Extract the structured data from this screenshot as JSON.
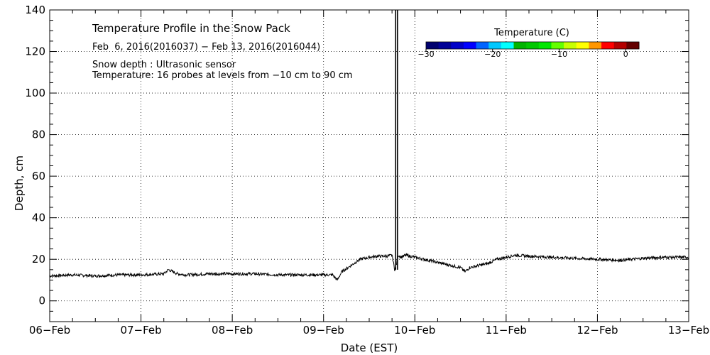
{
  "chart_data": {
    "type": "line",
    "title": "Temperature Profile in the Snow Pack",
    "subtitle": "Feb  6, 2016(2016037) − Feb 13, 2016(2016044)",
    "annotations": [
      "Snow depth : Ultrasonic sensor",
      "Temperature: 16 probes at levels from −10 cm to 90 cm"
    ],
    "xlabel": "Date (EST)",
    "ylabel": "Depth, cm",
    "x_ticks": [
      "06−Feb",
      "07−Feb",
      "08−Feb",
      "09−Feb",
      "10−Feb",
      "11−Feb",
      "12−Feb",
      "13−Feb"
    ],
    "y_ticks": [
      0,
      20,
      40,
      60,
      80,
      100,
      120,
      140
    ],
    "xlim_days": [
      0,
      7
    ],
    "ylim": [
      -10,
      140
    ],
    "grid": true,
    "series": [
      {
        "x_days": [
          0.0,
          0.25,
          0.5,
          0.75,
          1.0,
          1.25,
          1.3,
          1.4,
          1.5,
          1.75,
          2.0,
          2.25,
          2.5,
          2.75,
          3.0,
          3.1,
          3.15,
          3.2,
          3.3,
          3.4,
          3.5,
          3.6,
          3.7,
          3.75,
          3.78,
          3.8,
          3.82,
          3.85,
          3.9,
          4.0,
          4.1,
          4.2,
          4.3,
          4.4,
          4.5,
          4.55,
          4.6,
          4.7,
          4.8,
          4.9,
          5.0,
          5.1,
          5.25,
          5.5,
          5.75,
          6.0,
          6.25,
          6.5,
          6.75,
          7.0
        ],
        "y": [
          12,
          12.5,
          12,
          12.5,
          12.5,
          13,
          15,
          13,
          12.5,
          13,
          13,
          13,
          12.5,
          12.5,
          12.5,
          12.5,
          10,
          14,
          17,
          20,
          21,
          21.5,
          21.5,
          22,
          15,
          18,
          22,
          21,
          22,
          21,
          20,
          19,
          18,
          17,
          16,
          14,
          16,
          17,
          18,
          20,
          21,
          22,
          21.5,
          21,
          20.5,
          20,
          19.5,
          20.5,
          21,
          21
        ]
      }
    ],
    "spikes": [
      {
        "x_day": 3.79,
        "y_from": 15,
        "y_to": 140
      },
      {
        "x_day": 3.81,
        "y_from": 15,
        "y_to": 140
      }
    ],
    "colorbar": {
      "label": "Temperature (C)",
      "tick_values": [
        -30,
        -20,
        -10,
        0
      ],
      "tick_labels": [
        "−30",
        "−20",
        "−10",
        "0"
      ],
      "range": [
        -30,
        2
      ],
      "colors": [
        "#00006e",
        "#000096",
        "#0000c8",
        "#0000ff",
        "#0064ff",
        "#00c8ff",
        "#00ffff",
        "#00b400",
        "#00c800",
        "#00e600",
        "#64ff00",
        "#c8ff00",
        "#ffff00",
        "#ff9600",
        "#ff0000",
        "#b40000",
        "#640000"
      ]
    }
  }
}
